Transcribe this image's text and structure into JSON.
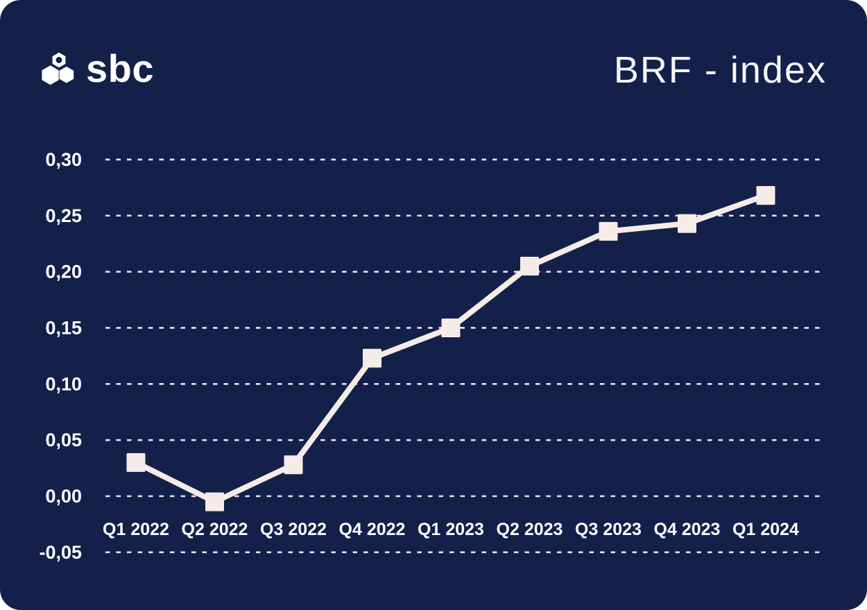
{
  "header": {
    "logo_text": "sbc",
    "title": "BRF - index"
  },
  "colors": {
    "card_background": "#13204a",
    "series": "#f6ece7",
    "gridline": "#e8e6ee",
    "label_text": "#ffffff"
  },
  "chart_data": {
    "type": "line",
    "title": "BRF - index",
    "xlabel": "",
    "ylabel": "",
    "categories": [
      "Q1 2022",
      "Q2 2022",
      "Q3 2022",
      "Q4 2022",
      "Q1 2023",
      "Q2 2023",
      "Q3 2023",
      "Q4 2023",
      "Q1 2024"
    ],
    "series": [
      {
        "name": "BRF-index",
        "values": [
          0.03,
          -0.005,
          0.028,
          0.123,
          0.15,
          0.205,
          0.236,
          0.243,
          0.268
        ]
      }
    ],
    "yticks": [
      {
        "value": 0.3,
        "label": "0,30"
      },
      {
        "value": 0.25,
        "label": "0,25"
      },
      {
        "value": 0.2,
        "label": "0,20"
      },
      {
        "value": 0.15,
        "label": "0,15"
      },
      {
        "value": 0.1,
        "label": "0,10"
      },
      {
        "value": 0.05,
        "label": "0,05"
      },
      {
        "value": 0.0,
        "label": "0,00"
      },
      {
        "value": -0.05,
        "label": "-0,05"
      }
    ],
    "ylim": [
      -0.05,
      0.3
    ],
    "grid": true,
    "grid_style": "dashed",
    "legend": false,
    "marker_shape": "square",
    "decimal_separator": ","
  }
}
